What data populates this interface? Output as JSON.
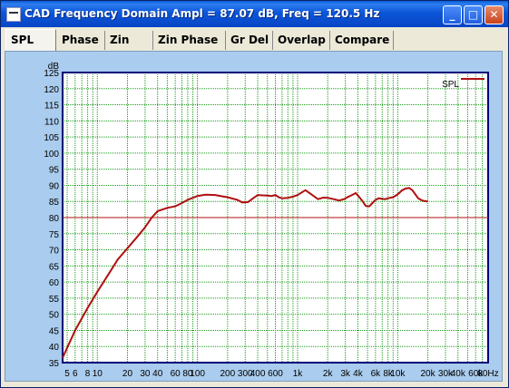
{
  "window": {
    "title": "CAD Frequency Domain   Ampl = 87.07 dB, Freq = 120.5 Hz",
    "buttons": {
      "minimize": "_",
      "maximize": "□",
      "close": "✕"
    }
  },
  "tabs": [
    {
      "label": "SPL",
      "active": true
    },
    {
      "label": "Phase",
      "active": false
    },
    {
      "label": "Zin",
      "active": false
    },
    {
      "label": "Zin Phase",
      "active": false
    },
    {
      "label": "Gr Del",
      "active": false
    },
    {
      "label": "Overlap",
      "active": false
    },
    {
      "label": "Compare",
      "active": false
    }
  ],
  "chart_data": {
    "type": "line",
    "ylabel": "dB",
    "xscale": "log",
    "xlim": [
      4.5,
      80000
    ],
    "ylim": [
      35,
      125
    ],
    "y_ticks": [
      35,
      40,
      45,
      50,
      55,
      60,
      65,
      70,
      75,
      80,
      85,
      90,
      95,
      100,
      105,
      110,
      115,
      120,
      125
    ],
    "x_ticks": [
      {
        "value": 5,
        "label": "5"
      },
      {
        "value": 6,
        "label": "6"
      },
      {
        "value": 8,
        "label": "8"
      },
      {
        "value": 10,
        "label": "10"
      },
      {
        "value": 20,
        "label": "20"
      },
      {
        "value": 30,
        "label": "30"
      },
      {
        "value": 40,
        "label": "40"
      },
      {
        "value": 60,
        "label": "60"
      },
      {
        "value": 80,
        "label": "80"
      },
      {
        "value": 100,
        "label": "100"
      },
      {
        "value": 200,
        "label": "200"
      },
      {
        "value": 300,
        "label": "300"
      },
      {
        "value": 400,
        "label": "400"
      },
      {
        "value": 600,
        "label": "600"
      },
      {
        "value": 1000,
        "label": "1k"
      },
      {
        "value": 2000,
        "label": "2k"
      },
      {
        "value": 3000,
        "label": "3k"
      },
      {
        "value": 4000,
        "label": "4k"
      },
      {
        "value": 6000,
        "label": "6k"
      },
      {
        "value": 8000,
        "label": "8k"
      },
      {
        "value": 10000,
        "label": "10k"
      },
      {
        "value": 20000,
        "label": "20k"
      },
      {
        "value": 30000,
        "label": "30k"
      },
      {
        "value": 40000,
        "label": "40k"
      },
      {
        "value": 60000,
        "label": "60k"
      },
      {
        "value": 80000,
        "label": "80Hz"
      }
    ],
    "reference_line": {
      "y": 80
    },
    "grid": true,
    "legend": "top-right",
    "series": [
      {
        "name": "SPL",
        "color": "#b01010",
        "x": [
          4.5,
          6,
          8,
          10,
          13,
          16,
          20,
          25,
          30,
          35,
          40,
          50,
          60,
          70,
          80,
          100,
          120,
          150,
          200,
          250,
          280,
          320,
          360,
          400,
          450,
          500,
          550,
          600,
          650,
          700,
          800,
          900,
          1000,
          1100,
          1200,
          1400,
          1600,
          1800,
          2000,
          2300,
          2600,
          2900,
          3200,
          3500,
          3800,
          4100,
          4400,
          4800,
          5200,
          5600,
          6000,
          6500,
          7000,
          7500,
          8000,
          9000,
          10000,
          11000,
          12000,
          13000,
          14000,
          15000,
          16000,
          17000,
          18000,
          20000
        ],
        "y": [
          36.5,
          45,
          52,
          57,
          62.5,
          67,
          70.5,
          74,
          77,
          80,
          82,
          83,
          83.5,
          84.5,
          85.5,
          86.7,
          87.1,
          87,
          86.3,
          85.5,
          84.7,
          84.8,
          86,
          87,
          86.9,
          86.8,
          86.7,
          87,
          86.3,
          86,
          86.1,
          86.5,
          87,
          87.8,
          88.5,
          87,
          85.7,
          86.2,
          86.1,
          85.7,
          85.3,
          85.7,
          86.4,
          87,
          87.6,
          86.5,
          85.3,
          83.6,
          83.5,
          84.5,
          85.5,
          86,
          85.8,
          85.7,
          86,
          86.3,
          87.2,
          88.4,
          89,
          89.2,
          88.5,
          87.2,
          86,
          85.5,
          85.2,
          85
        ]
      }
    ]
  }
}
